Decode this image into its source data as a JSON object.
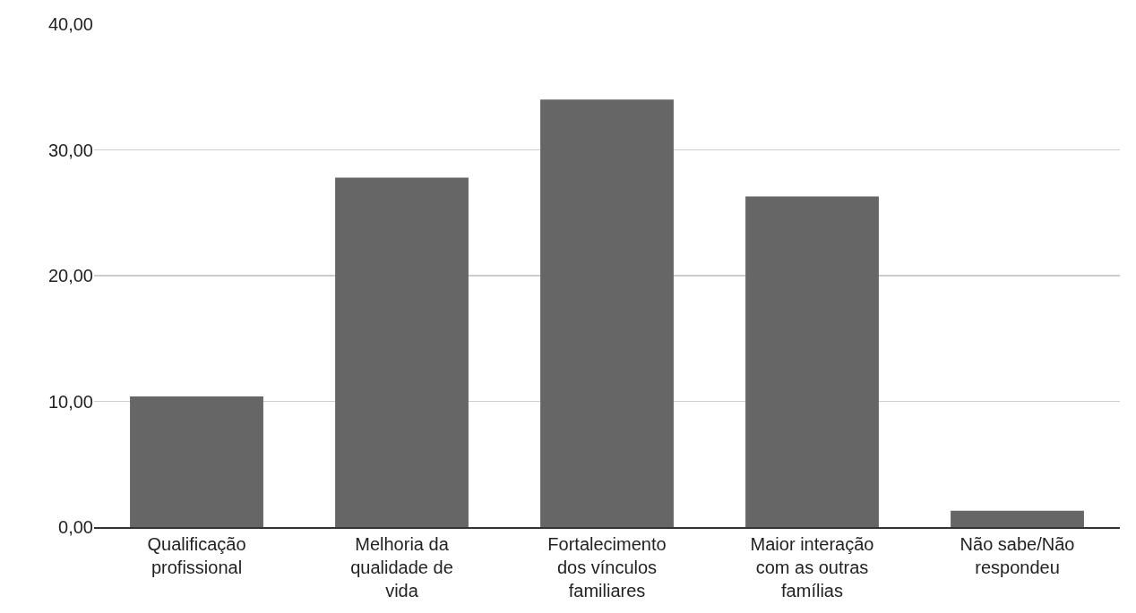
{
  "chart_data": {
    "type": "bar",
    "categories": [
      "Qualificação profissional",
      "Melhoria da qualidade de vida",
      "Fortalecimento dos vínculos familiares",
      "Maior interação com as outras famílias",
      "Não sabe/Não respondeu"
    ],
    "values": [
      10.4,
      27.8,
      34.0,
      26.3,
      1.3
    ],
    "color": "#666666",
    "ylim": [
      0,
      40
    ],
    "yticks": [
      {
        "value": 0,
        "label": "0,00"
      },
      {
        "value": 10,
        "label": "10,00"
      },
      {
        "value": 20,
        "label": "20,00"
      },
      {
        "value": 30,
        "label": "30,00"
      },
      {
        "value": 40,
        "label": "40,00"
      }
    ],
    "grid": "y",
    "legend": false
  }
}
